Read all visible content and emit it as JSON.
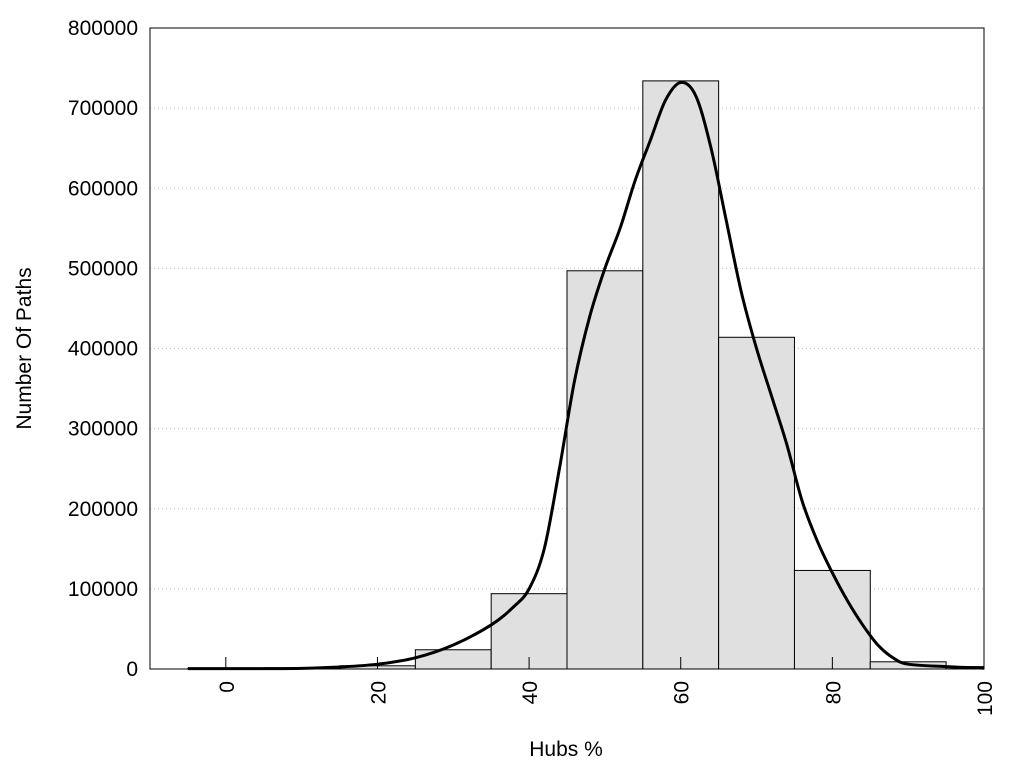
{
  "chart_data": {
    "type": "bar",
    "title": "",
    "xlabel": "Hubs %",
    "ylabel": "Number Of Paths",
    "xlim": [
      -10,
      100
    ],
    "ylim": [
      0,
      800000
    ],
    "x_ticks": [
      "0",
      "20",
      "40",
      "60",
      "80",
      "100"
    ],
    "y_ticks": [
      "0",
      "100000",
      "200000",
      "300000",
      "400000",
      "500000",
      "600000",
      "700000",
      "800000"
    ],
    "grid": "horizontal dotted",
    "legend": "none",
    "bar_color": "#e0e0e0",
    "bins": [
      {
        "x": [
          -5,
          5
        ],
        "value": 1000
      },
      {
        "x": [
          5,
          15
        ],
        "value": 1500
      },
      {
        "x": [
          15,
          25
        ],
        "value": 4000
      },
      {
        "x": [
          25,
          35
        ],
        "value": 24000
      },
      {
        "x": [
          35,
          45
        ],
        "value": 94000
      },
      {
        "x": [
          45,
          55
        ],
        "value": 497000
      },
      {
        "x": [
          55,
          65
        ],
        "value": 734000
      },
      {
        "x": [
          65,
          75
        ],
        "value": 414000
      },
      {
        "x": [
          75,
          85
        ],
        "value": 123000
      },
      {
        "x": [
          85,
          95
        ],
        "value": 9000
      },
      {
        "x": [
          95,
          100
        ],
        "value": 3000
      }
    ],
    "curve": {
      "type": "line",
      "x": [
        -5,
        0,
        5,
        10,
        15,
        20,
        25,
        30,
        35,
        38,
        40,
        42,
        44,
        46,
        48,
        50,
        52,
        54,
        56,
        58,
        60,
        62,
        64,
        66,
        68,
        70,
        72,
        74,
        76,
        78,
        80,
        82,
        84,
        86,
        88,
        90,
        95,
        100
      ],
      "y": [
        500,
        500,
        500,
        800,
        2500,
        6000,
        14000,
        30000,
        55000,
        78000,
        100000,
        150000,
        250000,
        360000,
        440000,
        500000,
        550000,
        610000,
        660000,
        710000,
        732000,
        715000,
        650000,
        560000,
        470000,
        400000,
        340000,
        280000,
        210000,
        160000,
        120000,
        85000,
        55000,
        30000,
        14000,
        6000,
        3000,
        1000
      ]
    }
  }
}
